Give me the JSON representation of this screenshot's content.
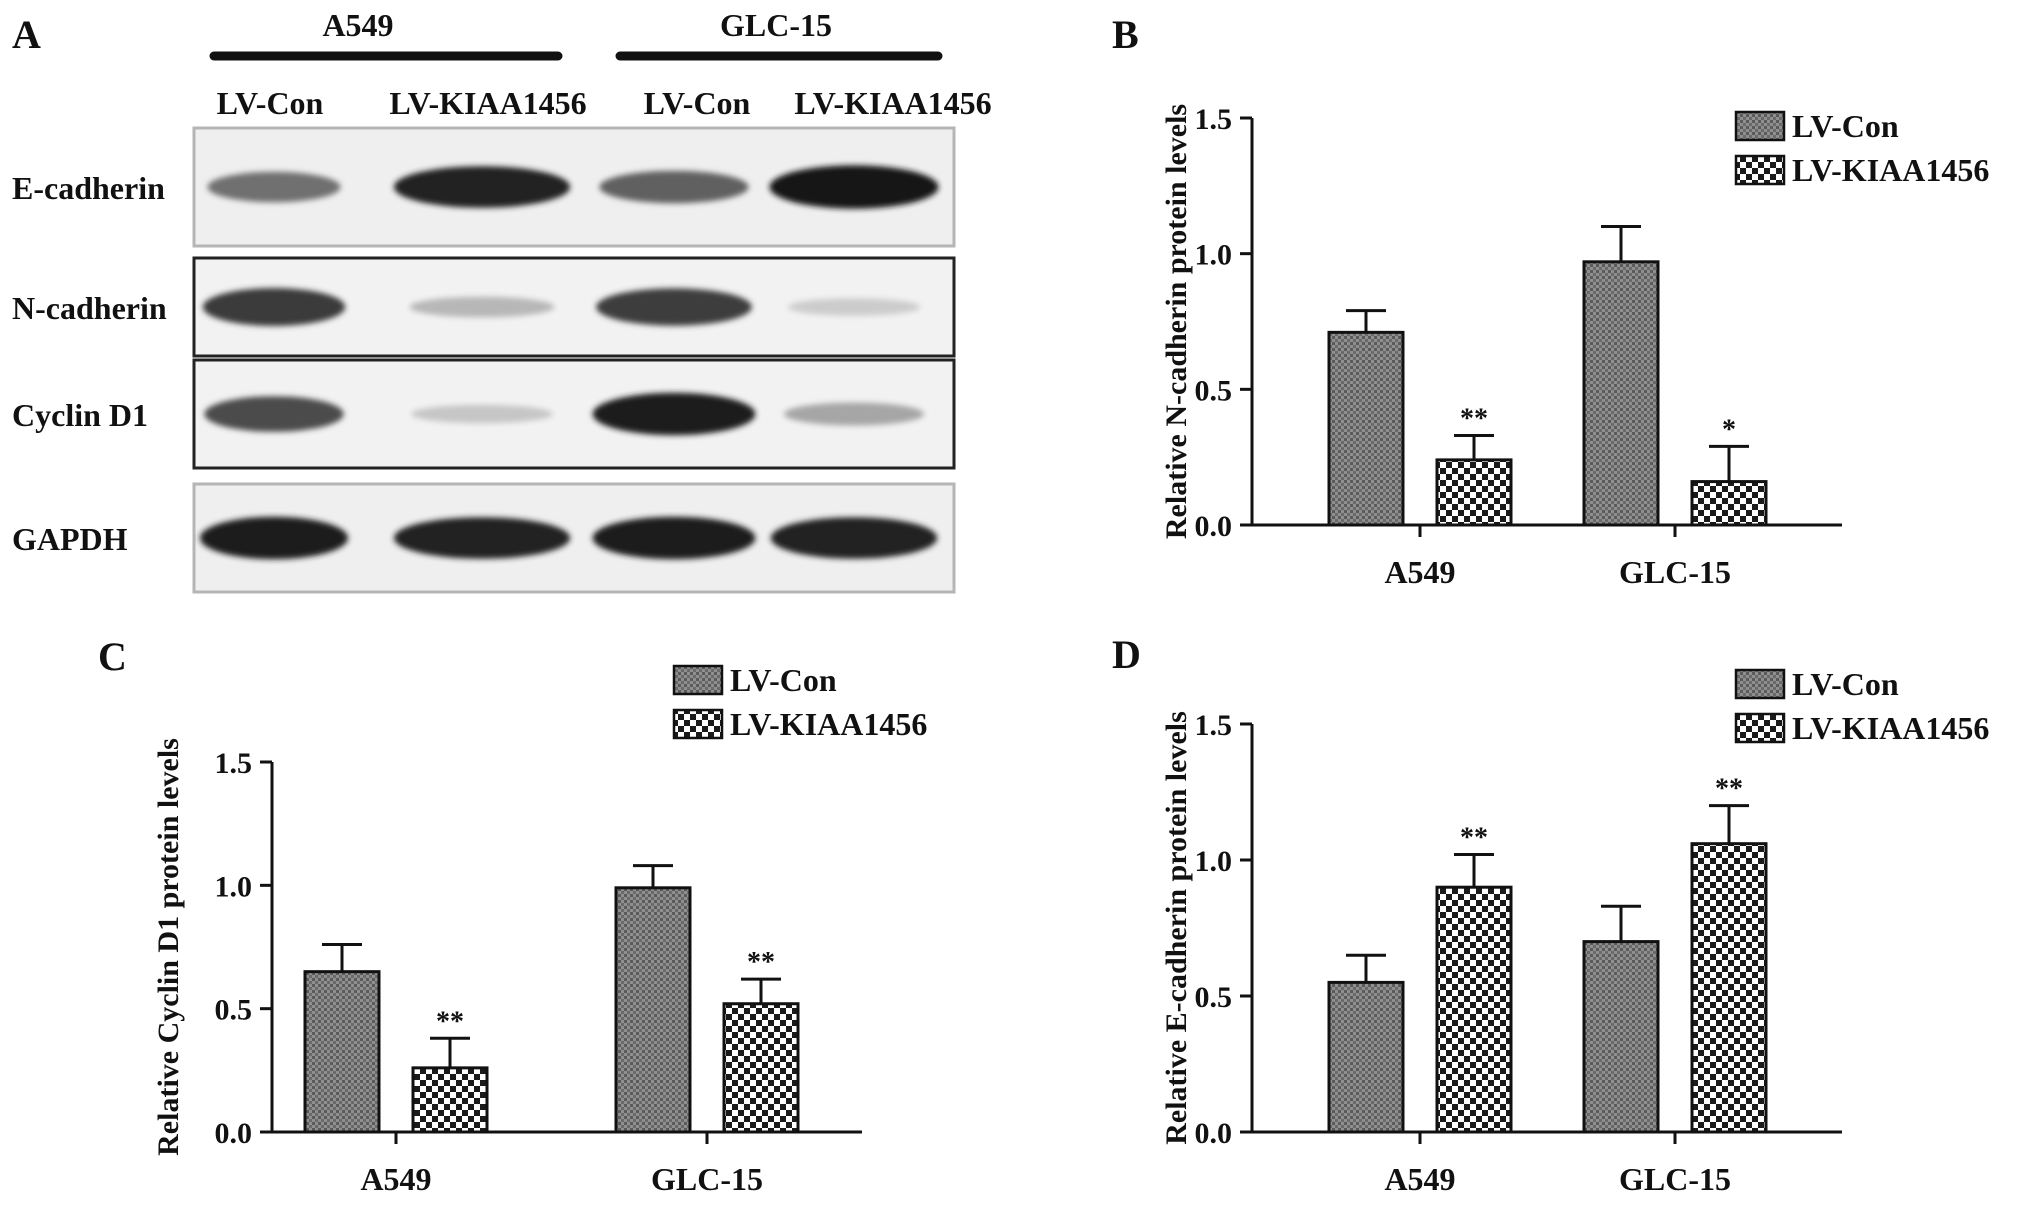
{
  "figure": {
    "panel_letters": [
      "A",
      "B",
      "C",
      "D"
    ],
    "blot": {
      "cell_lines": [
        "A549",
        "GLC-15"
      ],
      "lane_labels": [
        "LV-Con",
        "LV-KIAA1456",
        "LV-Con",
        "LV-KIAA1456"
      ],
      "rows": [
        {
          "label": "E-cadherin",
          "intensity": [
            0.55,
            0.92,
            0.62,
            0.98
          ]
        },
        {
          "label": "N-cadherin",
          "intensity": [
            0.8,
            0.22,
            0.78,
            0.12
          ]
        },
        {
          "label": "Cyclin D1",
          "intensity": [
            0.72,
            0.15,
            0.95,
            0.3
          ]
        },
        {
          "label": "GAPDH",
          "intensity": [
            0.95,
            0.92,
            0.95,
            0.92
          ]
        }
      ]
    }
  },
  "chart_data": [
    {
      "panel": "B",
      "type": "bar",
      "categories": [
        "A549",
        "GLC-15"
      ],
      "series": [
        {
          "name": "LV-Con",
          "values": [
            0.71,
            0.97
          ],
          "errors": [
            0.08,
            0.13
          ],
          "marks": [
            "",
            ""
          ]
        },
        {
          "name": "LV-KIAA1456",
          "values": [
            0.24,
            0.16
          ],
          "errors": [
            0.09,
            0.13
          ],
          "marks": [
            "**",
            "*"
          ]
        }
      ],
      "title": "",
      "xlabel": "",
      "ylabel": "Relative N-cadherin protein levels",
      "ylim": [
        0,
        1.5
      ],
      "yticks": [
        "0.0",
        "0.5",
        "1.0",
        "1.5"
      ],
      "legend": "top-right",
      "grid": false
    },
    {
      "panel": "C",
      "type": "bar",
      "categories": [
        "A549",
        "GLC-15"
      ],
      "series": [
        {
          "name": "LV-Con",
          "values": [
            0.65,
            0.99
          ],
          "errors": [
            0.11,
            0.09
          ],
          "marks": [
            "",
            ""
          ]
        },
        {
          "name": "LV-KIAA1456",
          "values": [
            0.26,
            0.52
          ],
          "errors": [
            0.12,
            0.1
          ],
          "marks": [
            "**",
            "**"
          ]
        }
      ],
      "title": "",
      "xlabel": "",
      "ylabel": "Relative Cyclin D1 protein levels",
      "ylim": [
        0,
        1.5
      ],
      "yticks": [
        "0.0",
        "0.5",
        "1.0",
        "1.5"
      ],
      "legend": "top-right",
      "grid": false
    },
    {
      "panel": "D",
      "type": "bar",
      "categories": [
        "A549",
        "GLC-15"
      ],
      "series": [
        {
          "name": "LV-Con",
          "values": [
            0.55,
            0.7
          ],
          "errors": [
            0.1,
            0.13
          ],
          "marks": [
            "",
            ""
          ]
        },
        {
          "name": "LV-KIAA1456",
          "values": [
            0.9,
            1.06
          ],
          "errors": [
            0.12,
            0.14
          ],
          "marks": [
            "**",
            "**"
          ]
        }
      ],
      "title": "",
      "xlabel": "",
      "ylabel": "Relative E-cadherin protein levels",
      "ylim": [
        0,
        1.5
      ],
      "yticks": [
        "0.0",
        "0.5",
        "1.0",
        "1.5"
      ],
      "legend": "top-right",
      "grid": false
    }
  ]
}
